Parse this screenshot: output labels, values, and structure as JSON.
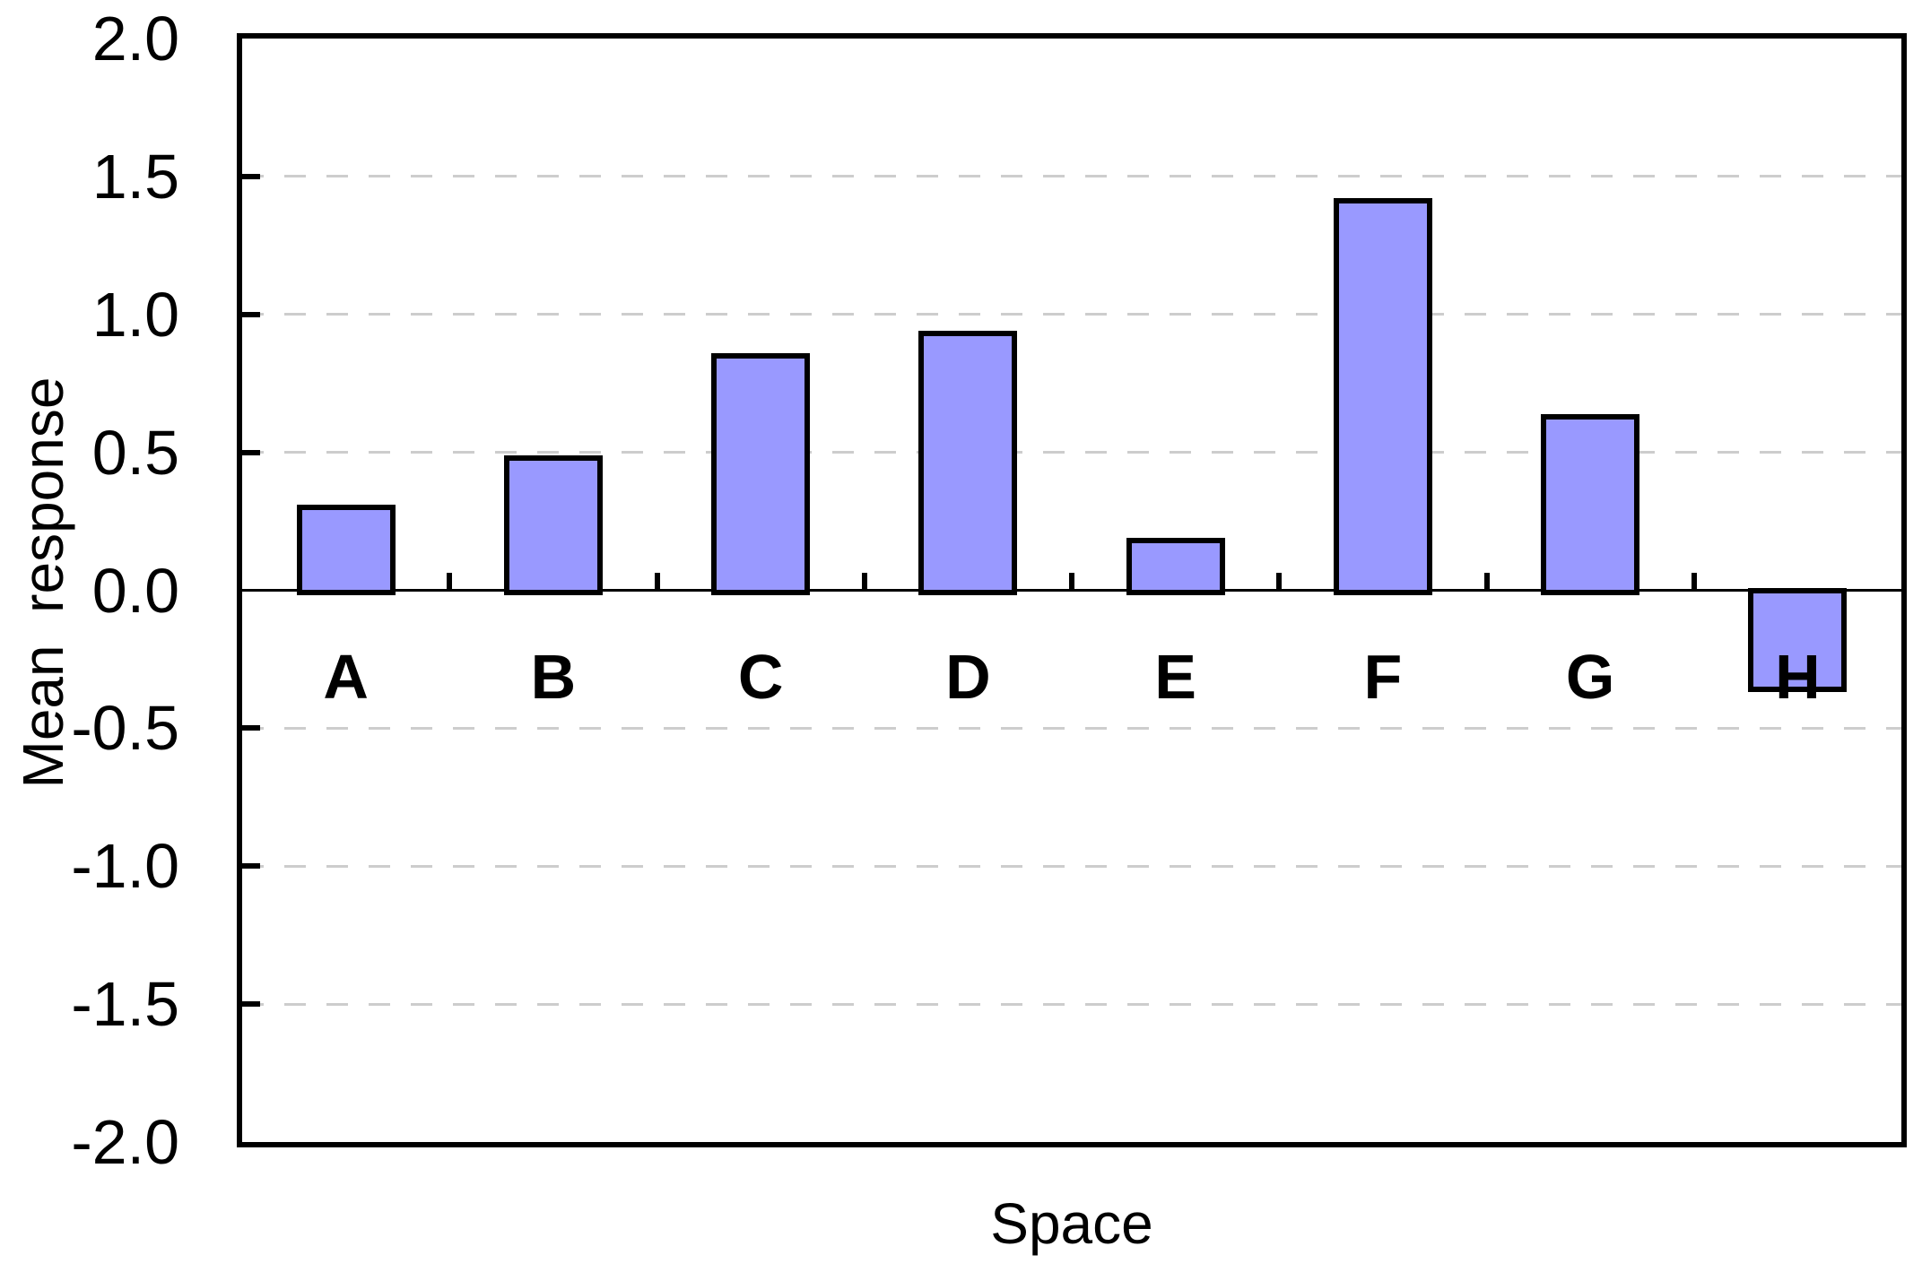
{
  "chart_data": {
    "type": "bar",
    "title": "",
    "xlabel": "Space",
    "ylabel": "Mean  response",
    "categories": [
      "A",
      "B",
      "C",
      "D",
      "E",
      "F",
      "G",
      "H"
    ],
    "values": [
      0.31,
      0.49,
      0.86,
      0.94,
      0.19,
      1.42,
      0.64,
      -0.36
    ],
    "ylim": [
      -2.0,
      2.0
    ],
    "ytick_interval": 0.5,
    "yticks": [
      {
        "value": 2.0,
        "label": "2.0"
      },
      {
        "value": 1.5,
        "label": "1.5"
      },
      {
        "value": 1.0,
        "label": "1.0"
      },
      {
        "value": 0.5,
        "label": "0.5"
      },
      {
        "value": 0.0,
        "label": "0.0"
      },
      {
        "value": -0.5,
        "label": "-0.5"
      },
      {
        "value": -1.0,
        "label": "-1.0"
      },
      {
        "value": -1.5,
        "label": "-1.5"
      },
      {
        "value": -2.0,
        "label": "-2.0"
      }
    ],
    "grid": "horizontal dashed lines every 0.5, none at 0 (solid zero axis line)",
    "legend": "none",
    "colors": {
      "bar_fill": "#9999FF",
      "bar_border": "#000000",
      "gridline": "#CDCDCD",
      "axis": "#000000",
      "text": "#000000",
      "background": "#FFFFFF"
    }
  }
}
